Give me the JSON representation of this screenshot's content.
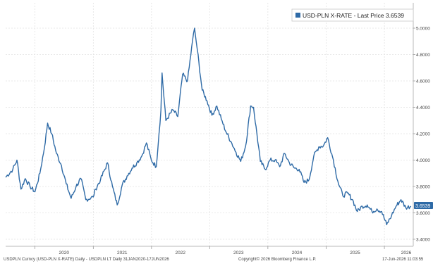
{
  "chart_data": {
    "type": "line",
    "title": "",
    "xlabel": "",
    "ylabel": "",
    "grid": true,
    "legend_position": "top-right",
    "x_tick_labels": [
      "2020",
      "2021",
      "2022",
      "2023",
      "2024",
      "2025",
      "2026"
    ],
    "y_tick_labels": [
      "3.4000",
      "3.6000",
      "3.8000",
      "4.0000",
      "4.2000",
      "4.4000",
      "4.6000",
      "4.8000",
      "5.0000"
    ],
    "ylim": [
      3.4,
      5.0
    ],
    "xlim": [
      "2019-07-01",
      "2026-07-01"
    ],
    "series": [
      {
        "name": "USD-PLN X-RATE - Last Price 3.6539",
        "color": "#2e6aa6",
        "x": [
          "2019-07-01",
          "2019-08-15",
          "2019-09-10",
          "2019-10-05",
          "2019-11-01",
          "2019-12-01",
          "2020-01-01",
          "2020-02-01",
          "2020-03-01",
          "2020-03-20",
          "2020-04-15",
          "2020-05-15",
          "2020-06-15",
          "2020-07-15",
          "2020-08-15",
          "2020-09-15",
          "2020-10-15",
          "2020-11-15",
          "2020-12-31",
          "2021-01-15",
          "2021-02-15",
          "2021-03-31",
          "2021-05-01",
          "2021-05-31",
          "2021-07-01",
          "2021-08-01",
          "2021-09-01",
          "2021-10-01",
          "2021-11-01",
          "2021-11-30",
          "2021-12-31",
          "2022-01-31",
          "2022-03-01",
          "2022-03-08",
          "2022-04-01",
          "2022-05-15",
          "2022-06-15",
          "2022-07-15",
          "2022-08-15",
          "2022-09-15",
          "2022-09-28",
          "2022-10-15",
          "2022-11-15",
          "2022-12-15",
          "2023-01-15",
          "2023-02-15",
          "2023-03-15",
          "2023-04-15",
          "2023-05-15",
          "2023-06-15",
          "2023-07-15",
          "2023-08-15",
          "2023-09-15",
          "2023-10-03",
          "2023-11-15",
          "2023-12-15",
          "2024-01-15",
          "2024-02-15",
          "2024-03-15",
          "2024-04-15",
          "2024-05-15",
          "2024-06-15",
          "2024-07-15",
          "2024-08-15",
          "2024-09-15",
          "2024-10-15",
          "2024-11-15",
          "2024-12-15",
          "2025-01-10",
          "2025-02-15",
          "2025-03-15",
          "2025-04-15",
          "2025-05-15",
          "2025-06-15",
          "2025-07-15",
          "2025-08-15",
          "2025-09-15",
          "2025-10-15",
          "2025-11-15",
          "2025-12-15",
          "2026-01-15",
          "2026-02-15",
          "2026-03-15",
          "2026-04-15",
          "2026-05-15",
          "2026-06-17"
        ],
        "y": [
          3.87,
          3.93,
          4.0,
          3.78,
          3.86,
          3.8,
          3.76,
          3.9,
          4.1,
          4.28,
          4.2,
          4.05,
          3.96,
          3.82,
          3.71,
          3.8,
          3.86,
          3.7,
          3.72,
          3.78,
          3.85,
          3.98,
          3.8,
          3.66,
          3.81,
          3.88,
          3.94,
          3.98,
          4.03,
          4.13,
          4.0,
          3.95,
          4.38,
          4.66,
          4.3,
          4.38,
          4.33,
          4.65,
          4.6,
          4.9,
          5.0,
          4.84,
          4.53,
          4.45,
          4.34,
          4.41,
          4.31,
          4.21,
          4.14,
          4.06,
          3.99,
          4.11,
          4.41,
          4.4,
          3.99,
          3.93,
          4.0,
          4.0,
          3.95,
          4.05,
          3.98,
          3.94,
          3.93,
          3.83,
          3.85,
          4.03,
          4.1,
          4.11,
          4.17,
          4.0,
          3.84,
          3.73,
          3.75,
          3.7,
          3.61,
          3.65,
          3.66,
          3.61,
          3.63,
          3.61,
          3.51,
          3.58,
          3.65,
          3.7,
          3.64,
          3.65
        ]
      }
    ]
  },
  "legend": {
    "label": "USD-PLN X-RATE - Last Price 3.6539",
    "swatch_color": "#2e6aa6"
  },
  "last_price_tag": {
    "label": "3.6539",
    "color": "#2e6aa6"
  },
  "footer": {
    "left": "USDPLN Curncy (USD-PLN X-RATE) Daily - USDPLN LT Daily 31JAN2020-17JUN2026",
    "center": "Copyright© 2026 Bloomberg Finance L.P.",
    "right": "17-Jun-2026 11:03:55"
  }
}
